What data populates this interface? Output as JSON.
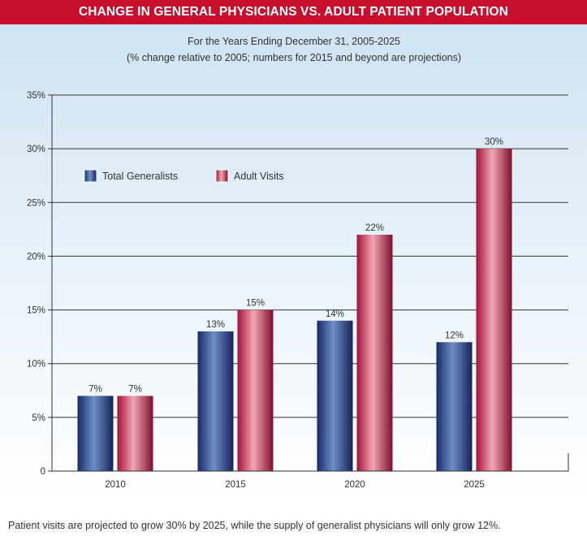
{
  "header": {
    "title": "CHANGE IN GENERAL PHYSICIANS VS. ADULT PATIENT POPULATION"
  },
  "footnote": "Patient visits are projected to grow 30% by 2025, while the supply of generalist physicians will only grow 12%.",
  "colors": {
    "banner": "#c8102e",
    "generalists": "#1f2f7a",
    "visits": "#b01540"
  },
  "chart_data": {
    "type": "bar",
    "subtitle": "For the Years Ending December 31, 2005-2025",
    "subtitle2": "(% change relative to 2005; numbers for 2015 and beyond are projections)",
    "categories": [
      "2010",
      "2015",
      "2020",
      "2025"
    ],
    "series": [
      {
        "name": "Total Generalists",
        "values": [
          7,
          13,
          14,
          12
        ],
        "labels": [
          "7%",
          "13%",
          "14%",
          "12%"
        ]
      },
      {
        "name": "Adult Visits",
        "values": [
          7,
          15,
          22,
          30
        ],
        "labels": [
          "7%",
          "15%",
          "22%",
          "30%"
        ]
      }
    ],
    "ylim": [
      0,
      35
    ],
    "yticks": [
      0,
      5,
      10,
      15,
      20,
      25,
      30,
      35
    ],
    "ytick_labels": [
      "0",
      "5%",
      "10%",
      "15%",
      "20%",
      "25%",
      "30%",
      "35%"
    ],
    "grid": true,
    "legend_position": "top-left"
  }
}
